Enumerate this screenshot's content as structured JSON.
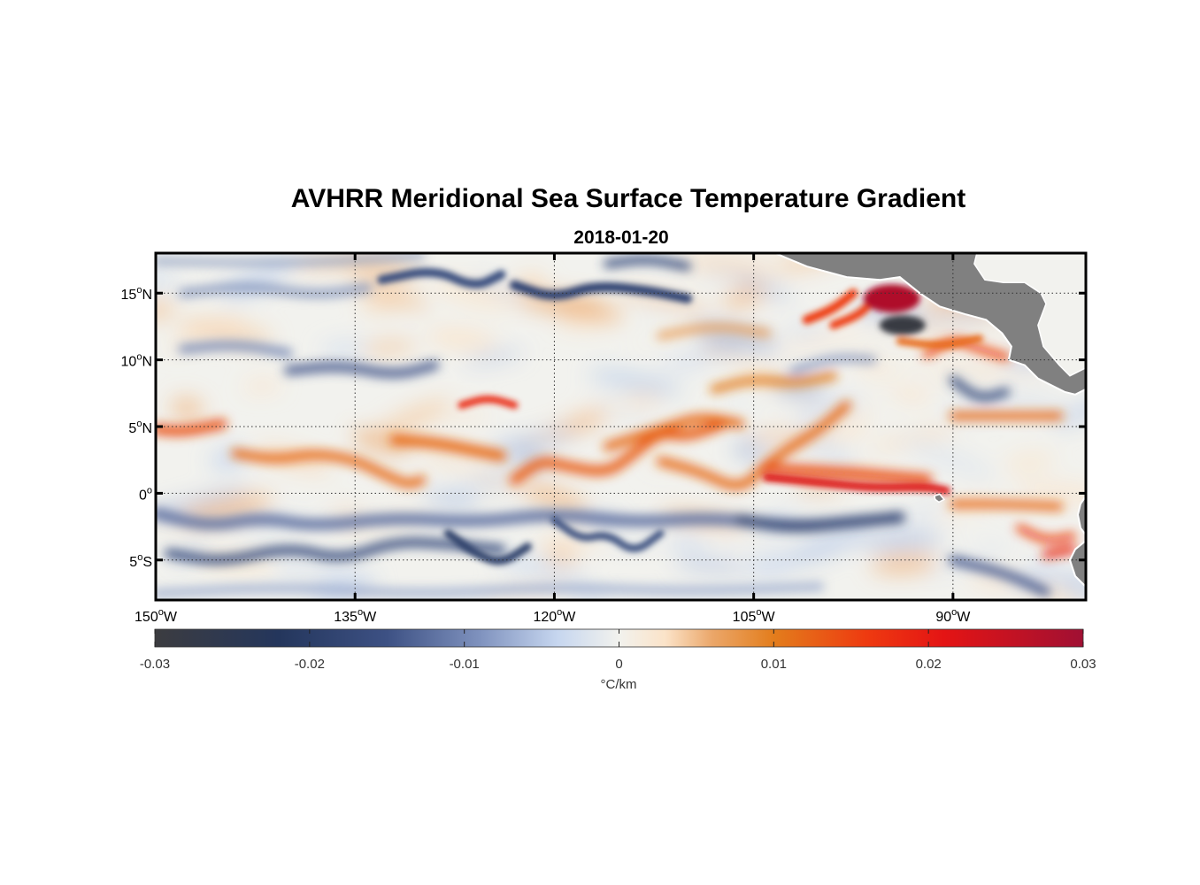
{
  "title": "AVHRR Meridional Sea Surface Temperature Gradient",
  "subtitle": "2018-01-20",
  "map": {
    "lon_range": [
      -150,
      -80
    ],
    "lat_range": [
      -8,
      18
    ],
    "lat_ticks": [
      {
        "value": 15,
        "num": "15",
        "dir": "N"
      },
      {
        "value": 10,
        "num": "10",
        "dir": "N"
      },
      {
        "value": 5,
        "num": "5",
        "dir": "N"
      },
      {
        "value": 0,
        "num": "0",
        "dir": ""
      },
      {
        "value": -5,
        "num": "5",
        "dir": "S"
      }
    ],
    "lon_ticks": [
      {
        "value": -150,
        "num": "150",
        "dir": "W"
      },
      {
        "value": -135,
        "num": "135",
        "dir": "W"
      },
      {
        "value": -120,
        "num": "120",
        "dir": "W"
      },
      {
        "value": -105,
        "num": "105",
        "dir": "W"
      },
      {
        "value": -90,
        "num": "90",
        "dir": "W"
      }
    ],
    "degree_symbol": "o",
    "grid": "dotted",
    "land_color": "#808080"
  },
  "colorbar": {
    "min": -0.03,
    "max": 0.03,
    "ticks": [
      "-0.03",
      "-0.02",
      "-0.01",
      "0",
      "0.01",
      "0.02",
      "0.03"
    ],
    "label": "°C/km",
    "stops": [
      {
        "v": -0.03,
        "color": "#3c3c40"
      },
      {
        "v": -0.022,
        "color": "#24365c"
      },
      {
        "v": -0.015,
        "color": "#3d5184"
      },
      {
        "v": -0.009,
        "color": "#7f92be"
      },
      {
        "v": -0.004,
        "color": "#c6d6ef"
      },
      {
        "v": 0.0,
        "color": "#f2f2ee"
      },
      {
        "v": 0.003,
        "color": "#fbe3c8"
      },
      {
        "v": 0.006,
        "color": "#eba76a"
      },
      {
        "v": 0.01,
        "color": "#e37d1c"
      },
      {
        "v": 0.016,
        "color": "#ee3a10"
      },
      {
        "v": 0.021,
        "color": "#e41414"
      },
      {
        "v": 0.03,
        "color": "#a01033"
      }
    ]
  },
  "chart_data": {
    "type": "heatmap",
    "title": "AVHRR Meridional Sea Surface Temperature Gradient",
    "subtitle": "2018-01-20",
    "variable": "meridional SST gradient",
    "units": "°C/km",
    "value_range": [
      -0.03,
      0.03
    ],
    "x_range_lon": [
      -150,
      -80
    ],
    "y_range_lat": [
      -8,
      18
    ],
    "features": [
      {
        "description": "positive band along ~5N at far west",
        "lon": [
          -150,
          -145
        ],
        "lat": 4.8,
        "value": 0.013
      },
      {
        "description": "equatorial front positive band",
        "lon": [
          -100,
          -91
        ],
        "lat": 0.5,
        "value": 0.022
      },
      {
        "description": "positive band",
        "lon": [
          -130,
          -120
        ],
        "lat": 3.5,
        "value": 0.012
      },
      {
        "description": "positive wave",
        "lon": [
          -120,
          -110
        ],
        "lat": 4.5,
        "value": 0.012
      },
      {
        "description": "strong positive eddy off Mexico",
        "lon": [
          -96,
          -93
        ],
        "lat": 14.5,
        "value": 0.028
      },
      {
        "description": "strong negative eddy off Mexico",
        "lon": [
          -95,
          -93
        ],
        "lat": 12.5,
        "value": -0.028
      },
      {
        "description": "negative band south of equator",
        "lon": [
          -150,
          -95
        ],
        "lat": -2.5,
        "value": -0.014
      },
      {
        "description": "negative band",
        "lon": [
          -130,
          -120
        ],
        "lat": -4,
        "value": -0.015
      },
      {
        "description": "negative band at 10N",
        "lon": [
          -145,
          -130
        ],
        "lat": 9,
        "value": -0.012
      },
      {
        "description": "negative band at 15N",
        "lon": [
          -135,
          -110
        ],
        "lat": 15,
        "value": -0.014
      }
    ]
  }
}
